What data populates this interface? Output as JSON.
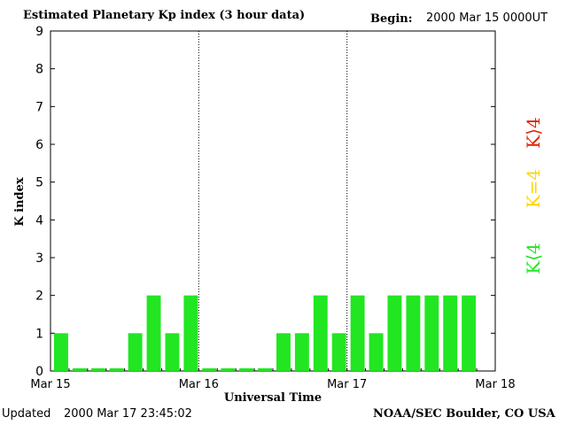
{
  "header": {
    "title": "Estimated Planetary Kp index (3 hour data)",
    "begin_label": "Begin:",
    "begin_value": "2000 Mar 15 0000UT"
  },
  "footer": {
    "updated_label": "Updated",
    "updated_value": "2000 Mar 17 23:45:02",
    "source": "NOAA/SEC Boulder, CO USA"
  },
  "legend": [
    {
      "label": "K<4",
      "color": "#22e622"
    },
    {
      "label": "K=4",
      "color": "#ffd400"
    },
    {
      "label": "K>4",
      "color": "#e61e00"
    }
  ],
  "chart_data": {
    "type": "bar",
    "title": "Estimated Planetary Kp index (3 hour data)",
    "xlabel": "Universal Time",
    "ylabel": "K index",
    "x_ticks": [
      "Mar 15",
      "Mar 16",
      "Mar 17",
      "Mar 18"
    ],
    "y_ticks": [
      "0",
      "1",
      "2",
      "3",
      "4",
      "5",
      "6",
      "7",
      "8",
      "9"
    ],
    "ylim": [
      0,
      9
    ],
    "bar_color": "#22e622",
    "values": [
      1,
      0,
      0,
      0,
      1,
      2,
      1,
      2,
      0,
      0,
      0,
      0,
      1,
      1,
      2,
      1,
      2,
      1,
      2,
      2,
      2,
      2,
      2
    ],
    "day_dividers": [
      "Mar 16",
      "Mar 17"
    ]
  }
}
